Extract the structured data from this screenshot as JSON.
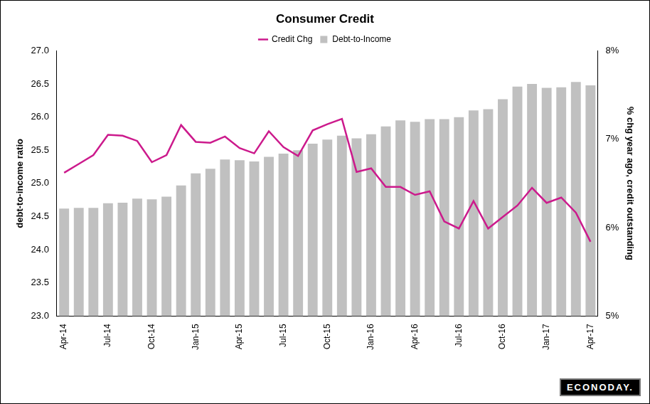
{
  "chart_data": {
    "type": "bar",
    "title": "Consumer Credit",
    "y_label": "debt-to-income ratio",
    "y2_label": "% chg year ago, credit outstanding",
    "annotations": [
      "ECONODAY."
    ],
    "categories": [
      "Apr-14",
      null,
      null,
      "Jul-14",
      null,
      null,
      "Oct-14",
      null,
      null,
      "Jan-15",
      null,
      null,
      "Apr-15",
      null,
      null,
      "Jul-15",
      null,
      null,
      "Oct-15",
      null,
      null,
      "Jan-16",
      null,
      null,
      "Apr-16",
      null,
      null,
      "Jul-16",
      null,
      null,
      "Oct-16",
      null,
      null,
      "Jan-17",
      null,
      null,
      "Apr-17"
    ],
    "series": [
      {
        "name": "Debt-to-Income",
        "type": "bar",
        "color": "#c0c0c0",
        "values": [
          24.62,
          24.63,
          24.63,
          24.7,
          24.71,
          24.77,
          24.76,
          24.8,
          24.97,
          25.15,
          25.22,
          25.36,
          25.35,
          25.33,
          25.4,
          25.45,
          25.5,
          25.6,
          25.66,
          25.72,
          25.68,
          25.74,
          25.86,
          25.95,
          25.93,
          25.97,
          25.97,
          26.0,
          26.1,
          26.12,
          26.27,
          26.46,
          26.5,
          26.44,
          26.45,
          26.53,
          26.48
        ]
      },
      {
        "name": "Credit Chg",
        "type": "line",
        "color": "#cc1a8c",
        "axis": "y2",
        "values": [
          6.62,
          6.72,
          6.82,
          7.05,
          7.04,
          6.98,
          6.74,
          6.82,
          7.16,
          6.97,
          6.96,
          7.03,
          6.9,
          6.84,
          7.09,
          6.91,
          6.81,
          7.1,
          7.17,
          7.23,
          6.63,
          6.67,
          6.46,
          6.46,
          6.37,
          6.41,
          6.07,
          5.99,
          6.3,
          5.99,
          6.12,
          6.25,
          6.45,
          6.28,
          6.34,
          6.17,
          5.84
        ]
      }
    ],
    "ylim": [
      23,
      27
    ],
    "yticks": [
      {
        "value": 23,
        "label": "23.0"
      },
      {
        "value": 23.5,
        "label": "23.5"
      },
      {
        "value": 24,
        "label": "24.0"
      },
      {
        "value": 24.5,
        "label": "24.5"
      },
      {
        "value": 25,
        "label": "25.0"
      },
      {
        "value": 25.5,
        "label": "25.5"
      },
      {
        "value": 26,
        "label": "26.0"
      },
      {
        "value": 26.5,
        "label": "26.5"
      },
      {
        "value": 27,
        "label": "27.0"
      }
    ],
    "y2lim": [
      5,
      8
    ],
    "y2ticks": [
      {
        "value": 5,
        "label": "5%"
      },
      {
        "value": 6,
        "label": "6%"
      },
      {
        "value": 7,
        "label": "7%"
      },
      {
        "value": 8,
        "label": "8%"
      }
    ],
    "grid": false,
    "legend": "top"
  }
}
